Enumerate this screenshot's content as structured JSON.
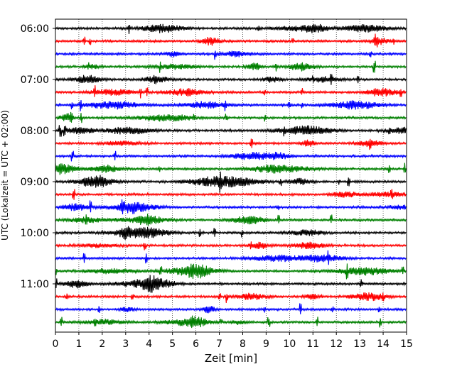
{
  "chart_data": {
    "type": "line",
    "title": "",
    "xlabel": "Zeit  [min]",
    "ylabel": "UTC (Lokalzeit = UTC + 02:00)",
    "xlim": [
      0,
      15
    ],
    "x_ticks": [
      0,
      1,
      2,
      3,
      4,
      5,
      6,
      7,
      8,
      9,
      10,
      11,
      12,
      13,
      14,
      15
    ],
    "y_ticks": [
      "06:00",
      "07:00",
      "08:00",
      "09:00",
      "10:00",
      "11:00"
    ],
    "grid": "vertical-dotted",
    "trace_colors": [
      "#000000",
      "#ff0000",
      "#0000ff",
      "#008000"
    ],
    "trace_start_times": [
      "06:00",
      "06:15",
      "06:30",
      "06:45",
      "07:00",
      "07:15",
      "07:30",
      "07:45",
      "08:00",
      "08:15",
      "08:30",
      "08:45",
      "09:00",
      "09:15",
      "09:30",
      "09:45",
      "10:00",
      "10:15",
      "10:30",
      "10:45",
      "11:00",
      "11:15",
      "11:30",
      "11:45"
    ]
  }
}
